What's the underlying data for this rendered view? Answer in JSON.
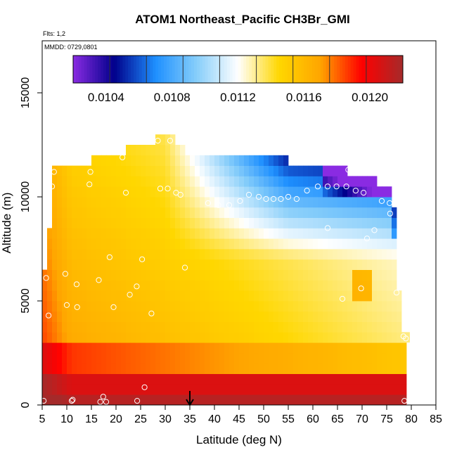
{
  "chart_data": {
    "type": "heatmap",
    "title": "ATOM1 Northeast_Pacific CH3Br_GMI",
    "flights_note": "Flts: 1,2",
    "date_note": "MMDD: 0729,0801",
    "xlabel": "Latitude (deg N)",
    "ylabel": "Altitude (m)",
    "xlim": [
      5,
      85
    ],
    "ylim": [
      0,
      17500
    ],
    "x_ticks": [
      5,
      10,
      15,
      20,
      25,
      30,
      35,
      40,
      45,
      50,
      55,
      60,
      65,
      70,
      75,
      80,
      85
    ],
    "y_ticks": [
      0,
      5000,
      10000,
      15000
    ],
    "colorbar": {
      "min": 0.0102,
      "max": 0.0122,
      "tick_values": [
        0.0104,
        0.0108,
        0.0112,
        0.0116,
        0.012
      ],
      "tick_labels": [
        "0.0104",
        "0.0108",
        "0.0112",
        "0.0116",
        "0.0120"
      ],
      "colors": [
        "#8a2be2",
        "#00008b",
        "#1e90ff",
        "#87cefa",
        "#ffffff",
        "#ffd700",
        "#ffa500",
        "#ff0000",
        "#a52a2a"
      ]
    },
    "grid": false,
    "marker_latitude": 35,
    "field_description": "Mixing ratio increases toward low altitude and low latitude; minimum near 10-12 km north of 35N",
    "observations": [
      {
        "lat": 5.3,
        "alt": 200
      },
      {
        "lat": 11.0,
        "alt": 200
      },
      {
        "lat": 11.2,
        "alt": 250
      },
      {
        "lat": 16.8,
        "alt": 150
      },
      {
        "lat": 17.4,
        "alt": 400
      },
      {
        "lat": 18.0,
        "alt": 150
      },
      {
        "lat": 24.3,
        "alt": 200
      },
      {
        "lat": 25.8,
        "alt": 850
      },
      {
        "lat": 78.6,
        "alt": 200
      },
      {
        "lat": 5.8,
        "alt": 6100
      },
      {
        "lat": 6.3,
        "alt": 4300
      },
      {
        "lat": 9.7,
        "alt": 6300
      },
      {
        "lat": 10.0,
        "alt": 4800
      },
      {
        "lat": 12.0,
        "alt": 5800
      },
      {
        "lat": 12.1,
        "alt": 4700
      },
      {
        "lat": 16.5,
        "alt": 6000
      },
      {
        "lat": 18.7,
        "alt": 7100
      },
      {
        "lat": 19.5,
        "alt": 4700
      },
      {
        "lat": 22.8,
        "alt": 5300
      },
      {
        "lat": 24.2,
        "alt": 5700
      },
      {
        "lat": 25.3,
        "alt": 7000
      },
      {
        "lat": 27.2,
        "alt": 4400
      },
      {
        "lat": 34.0,
        "alt": 6600
      },
      {
        "lat": 7.0,
        "alt": 10500
      },
      {
        "lat": 7.4,
        "alt": 11200
      },
      {
        "lat": 14.6,
        "alt": 10600
      },
      {
        "lat": 14.8,
        "alt": 11200
      },
      {
        "lat": 21.3,
        "alt": 11900
      },
      {
        "lat": 22.0,
        "alt": 10200
      },
      {
        "lat": 28.5,
        "alt": 12700
      },
      {
        "lat": 29.0,
        "alt": 10400
      },
      {
        "lat": 30.5,
        "alt": 10400
      },
      {
        "lat": 31.0,
        "alt": 12700
      },
      {
        "lat": 32.2,
        "alt": 10200
      },
      {
        "lat": 33.1,
        "alt": 10100
      },
      {
        "lat": 38.7,
        "alt": 9700
      },
      {
        "lat": 40.8,
        "alt": 9600
      },
      {
        "lat": 43.0,
        "alt": 9600
      },
      {
        "lat": 45.2,
        "alt": 9800
      },
      {
        "lat": 47.0,
        "alt": 10100
      },
      {
        "lat": 49.0,
        "alt": 10000
      },
      {
        "lat": 50.5,
        "alt": 9900
      },
      {
        "lat": 52.0,
        "alt": 9900
      },
      {
        "lat": 53.5,
        "alt": 9900
      },
      {
        "lat": 55.0,
        "alt": 10000
      },
      {
        "lat": 56.7,
        "alt": 9900
      },
      {
        "lat": 58.8,
        "alt": 10300
      },
      {
        "lat": 61.0,
        "alt": 10500
      },
      {
        "lat": 63.0,
        "alt": 10500
      },
      {
        "lat": 64.8,
        "alt": 10500
      },
      {
        "lat": 66.8,
        "alt": 10500
      },
      {
        "lat": 67.2,
        "alt": 11300
      },
      {
        "lat": 68.7,
        "alt": 10300
      },
      {
        "lat": 70.3,
        "alt": 10200
      },
      {
        "lat": 74.0,
        "alt": 9800
      },
      {
        "lat": 75.6,
        "alt": 9700
      },
      {
        "lat": 75.7,
        "alt": 9200
      },
      {
        "lat": 63.0,
        "alt": 8500
      },
      {
        "lat": 72.5,
        "alt": 8400
      },
      {
        "lat": 71.0,
        "alt": 8000
      },
      {
        "lat": 66.0,
        "alt": 5100
      },
      {
        "lat": 69.8,
        "alt": 5600
      },
      {
        "lat": 77.0,
        "alt": 5400
      },
      {
        "lat": 78.4,
        "alt": 3300
      },
      {
        "lat": 78.9,
        "alt": 3200
      }
    ]
  }
}
